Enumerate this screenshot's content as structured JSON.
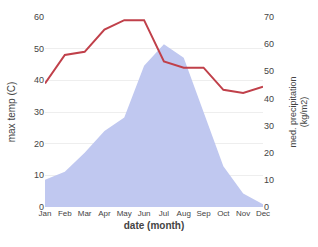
{
  "chart_data": {
    "type": "line",
    "xlabel": "date (month)",
    "ylabel": "max temp (C)",
    "y2label": "med. precipitation\n(kg/m2)",
    "categories": [
      "Jan",
      "Feb",
      "Mar",
      "Apr",
      "May",
      "Jun",
      "Jul",
      "Aug",
      "Sep",
      "Oct",
      "Nov",
      "Dec"
    ],
    "series": [
      {
        "type": "area",
        "axis": "y2",
        "color": "#c0c8f0",
        "values": [
          10,
          13,
          20,
          28,
          33,
          52,
          60,
          55,
          35,
          15,
          5,
          1
        ]
      },
      {
        "type": "line",
        "color": "#c0404a",
        "values": [
          39,
          48,
          49,
          56,
          59,
          59,
          46,
          44,
          44,
          37,
          36,
          38
        ]
      }
    ],
    "ylim": [
      0,
      60
    ],
    "yticks": [
      0,
      10,
      20,
      30,
      40,
      50,
      60
    ],
    "y2lim": [
      0,
      70
    ],
    "y2ticks": [
      0,
      10,
      20,
      30,
      40,
      50,
      60,
      70
    ],
    "grid": true
  }
}
